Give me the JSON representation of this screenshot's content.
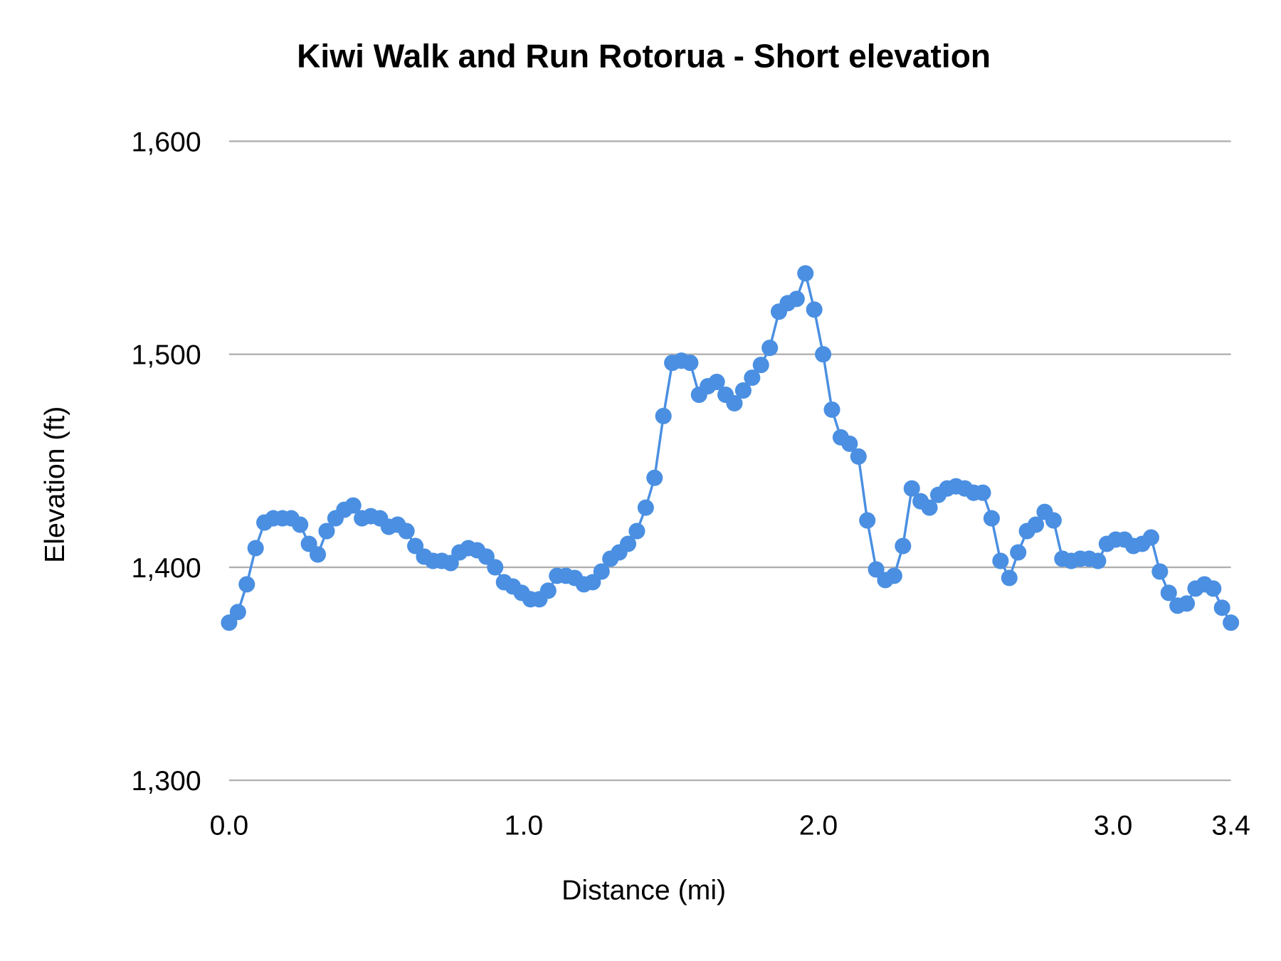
{
  "chart_data": {
    "type": "line",
    "title": "Kiwi Walk and Run Rotorua - Short elevation",
    "xlabel": "Distance (mi)",
    "ylabel": "Elevation (ft)",
    "xlim": [
      0,
      3.4
    ],
    "ylim": [
      1300,
      1600
    ],
    "x_ticks": [
      "0.0",
      "1.0",
      "2.0",
      "3.0",
      "3.4"
    ],
    "x_tick_values": [
      0,
      1,
      2,
      3,
      3.4
    ],
    "y_ticks": [
      "1,300",
      "1,400",
      "1,500",
      "1,600"
    ],
    "y_tick_values": [
      1300,
      1400,
      1500,
      1600
    ],
    "grid": "horizontal",
    "markers": true,
    "color": "#4a8fe2",
    "series": [
      {
        "x": [
          0,
          0.03,
          0.06,
          0.09,
          0.12,
          0.15,
          0.181,
          0.211,
          0.241,
          0.271,
          0.301,
          0.331,
          0.361,
          0.391,
          0.421,
          0.451,
          0.481,
          0.512,
          0.542,
          0.572,
          0.602,
          0.632,
          0.662,
          0.692,
          0.722,
          0.752,
          0.782,
          0.812,
          0.842,
          0.873,
          0.903,
          0.933,
          0.963,
          0.993,
          1.023,
          1.053,
          1.083,
          1.113,
          1.143,
          1.173,
          1.204,
          1.234,
          1.264,
          1.294,
          1.324,
          1.354,
          1.384,
          1.414,
          1.444,
          1.474,
          1.504,
          1.535,
          1.565,
          1.595,
          1.625,
          1.655,
          1.685,
          1.715,
          1.745,
          1.775,
          1.805,
          1.835,
          1.866,
          1.896,
          1.926,
          1.956,
          1.986,
          2.016,
          2.046,
          2.076,
          2.106,
          2.136,
          2.166,
          2.196,
          2.227,
          2.257,
          2.287,
          2.317,
          2.347,
          2.377,
          2.407,
          2.437,
          2.467,
          2.497,
          2.527,
          2.558,
          2.588,
          2.618,
          2.648,
          2.678,
          2.708,
          2.738,
          2.768,
          2.798,
          2.828,
          2.858,
          2.889,
          2.919,
          2.949,
          2.979,
          3.009,
          3.039,
          3.069,
          3.099,
          3.129,
          3.159,
          3.189,
          3.219,
          3.25,
          3.28,
          3.31,
          3.34,
          3.37,
          3.4
        ],
        "y": [
          1374,
          1379,
          1392,
          1409,
          1421,
          1423,
          1423,
          1423,
          1420,
          1411,
          1406,
          1417,
          1423,
          1427,
          1429,
          1423,
          1424,
          1423,
          1419,
          1420,
          1417,
          1410,
          1405,
          1403,
          1403,
          1402,
          1407,
          1409,
          1408,
          1405,
          1400,
          1393,
          1391,
          1388,
          1385,
          1385,
          1389,
          1396,
          1396,
          1395,
          1392,
          1393,
          1398,
          1404,
          1407,
          1411,
          1417,
          1428,
          1442,
          1471,
          1496,
          1497,
          1496,
          1481,
          1485,
          1487,
          1481,
          1477,
          1483,
          1489,
          1495,
          1503,
          1520,
          1524,
          1526,
          1538,
          1521,
          1500,
          1474,
          1461,
          1458,
          1452,
          1422,
          1399,
          1394,
          1396,
          1410,
          1437,
          1431,
          1428,
          1434,
          1437,
          1438,
          1437,
          1435,
          1435,
          1423,
          1403,
          1395,
          1407,
          1417,
          1420,
          1426,
          1422,
          1404,
          1403,
          1404,
          1404,
          1403,
          1411,
          1413,
          1413,
          1410,
          1411,
          1414,
          1398,
          1388,
          1382,
          1383,
          1390,
          1392,
          1390,
          1381,
          1374
        ]
      }
    ]
  }
}
